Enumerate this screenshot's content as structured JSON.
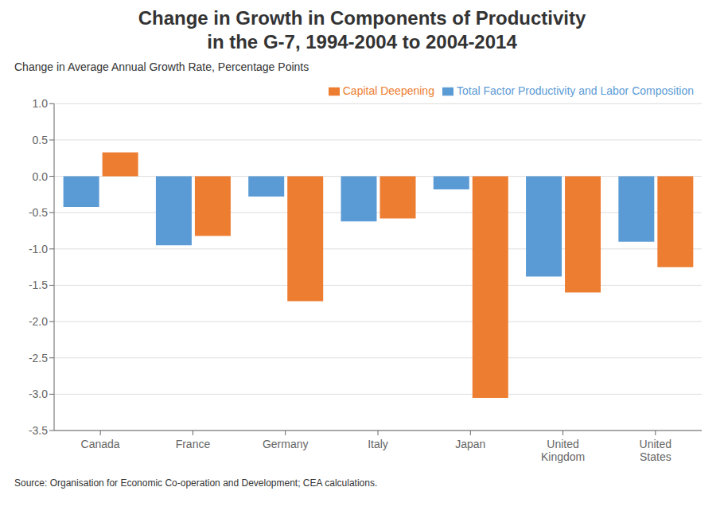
{
  "chart_data": {
    "type": "bar",
    "title": "Change in Growth in Components of Productivity\nin the G-7, 1994-2004 to 2004-2014",
    "ylabel": "Change in Average Annual Growth Rate, Percentage Points",
    "source": "Source: Organisation for Economic Co-operation and Development; CEA calculations.",
    "categories": [
      "Canada",
      "France",
      "Germany",
      "Italy",
      "Japan",
      "United\nKingdom",
      "United\nStates"
    ],
    "series": [
      {
        "name": "Total Factor Productivity and Labor Composition",
        "color": "#5B9BD5",
        "values": [
          -0.42,
          -0.95,
          -0.28,
          -0.62,
          -0.18,
          -1.38,
          -0.9
        ]
      },
      {
        "name": "Capital Deepening",
        "color": "#ED7D31",
        "values": [
          0.33,
          -0.82,
          -1.72,
          -0.58,
          -3.05,
          -1.6,
          -1.25
        ]
      }
    ],
    "ylim": [
      -3.5,
      1.0
    ],
    "yticks": [
      {
        "value": 1.0,
        "label": "1.0"
      },
      0.5,
      {
        "value": 0.0,
        "label": "0.0"
      },
      -0.5,
      {
        "value": -1.0,
        "label": "-1.0"
      },
      -1.5,
      {
        "value": -2.0,
        "label": "-2.0"
      },
      -2.5,
      {
        "value": -3.0,
        "label": "-3.0"
      },
      -3.5
    ],
    "grid": true,
    "legend": "upper right"
  }
}
